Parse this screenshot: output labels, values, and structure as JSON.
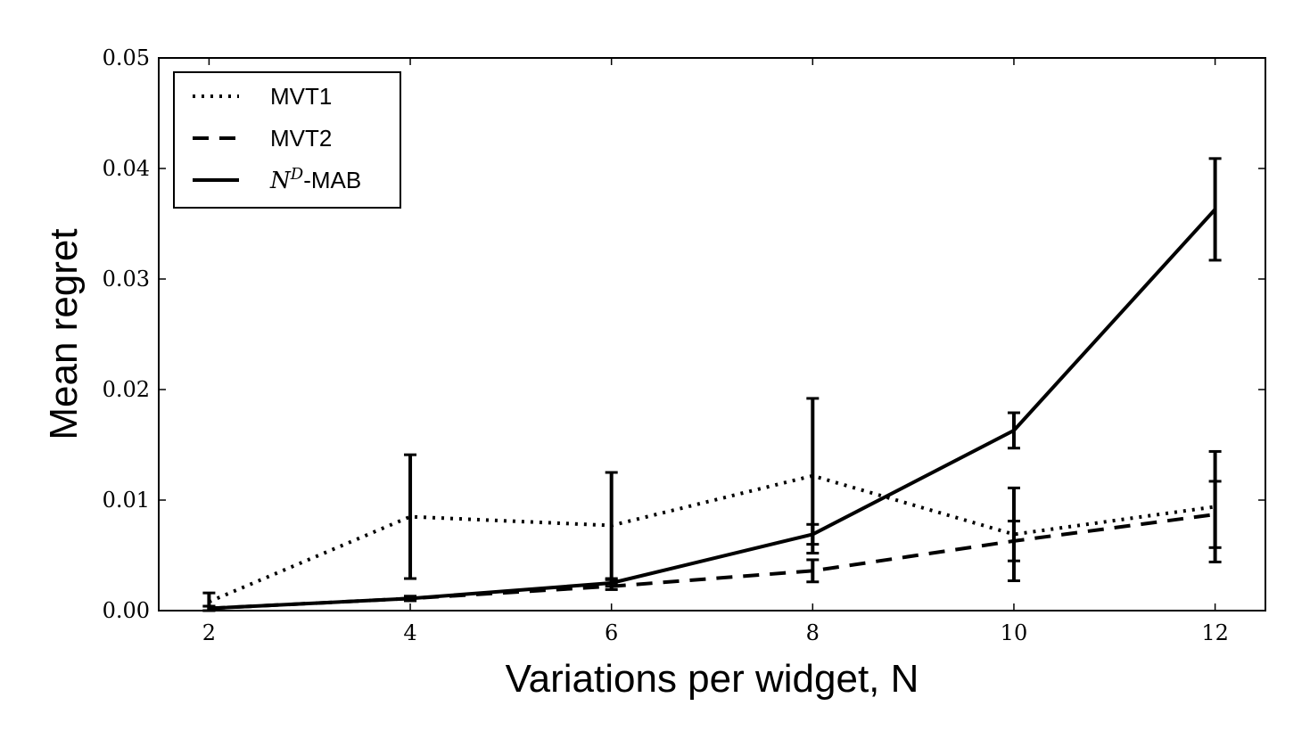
{
  "chart_data": {
    "type": "line",
    "title": "",
    "xlabel": "Variations per widget, N",
    "ylabel": "Mean regret",
    "xlim": [
      1.5,
      12.5
    ],
    "ylim": [
      0,
      0.05
    ],
    "x": [
      2,
      4,
      6,
      8,
      10,
      12
    ],
    "x_tick_labels": [
      "2",
      "4",
      "6",
      "8",
      "10",
      "12"
    ],
    "y_ticks": [
      0,
      0.01,
      0.02,
      0.03,
      0.04,
      0.05
    ],
    "y_tick_labels": [
      "0.00",
      "0.01",
      "0.02",
      "0.03",
      "0.04",
      "0.05"
    ],
    "grid": false,
    "legend_position": "top-left",
    "series": [
      {
        "name": "MVT1",
        "style": "dotted",
        "values": [
          0.0008,
          0.0085,
          0.0077,
          0.0122,
          0.0069,
          0.0094
        ],
        "error": [
          0.0008,
          0.0056,
          0.0048,
          0.007,
          0.0042,
          0.005
        ]
      },
      {
        "name": "MVT2",
        "style": "dashed",
        "values": [
          0.0002,
          0.0011,
          0.0022,
          0.0036,
          0.0063,
          0.0087
        ],
        "error": [
          0.0002,
          0.0002,
          0.0003,
          0.001,
          0.0018,
          0.003
        ]
      },
      {
        "name": "N^D-MAB",
        "name_base": "N",
        "name_sup": "D",
        "name_suffix": "-MAB",
        "style": "solid",
        "values": [
          0.0002,
          0.0011,
          0.0025,
          0.0069,
          0.0163,
          0.0363
        ],
        "error": [
          0.0002,
          0.0002,
          0.0003,
          0.0009,
          0.0016,
          0.0046
        ]
      }
    ],
    "line_color": "#000000"
  }
}
